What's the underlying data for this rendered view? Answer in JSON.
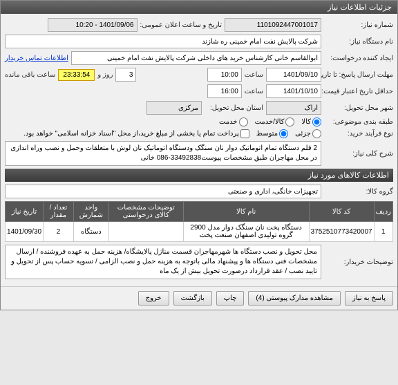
{
  "window": {
    "title": "جزئیات اطلاعات نیاز"
  },
  "fields": {
    "niaz_no_label": "شماره نیاز:",
    "niaz_no": "1101092447001017",
    "announce_label": "تاریخ و ساعت اعلان عمومی:",
    "announce": "1401/09/06 - 10:20",
    "device_label": "نام دستگاه نیاز:",
    "device": "شرکت پالایش نفت امام خمینی  ره  شازند",
    "requester_label": "ایجاد کننده درخواست:",
    "requester": "ابوالقاسم  خانی  کارشناس خرید های داخلی  شرکت پالایش نفت امام خمینی",
    "contact_link": "اطلاعات تماس خریدار",
    "deadline_label": "مهلت ارسال پاسخ: تا تاریخ:",
    "deadline_date": "1401/09/10",
    "time_label": "ساعت",
    "deadline_time": "10:00",
    "days": "3",
    "days_unit": "روز و",
    "countdown": "23:33:54",
    "remaining": "ساعت باقی مانده",
    "validity_label": "حداقل تاریخ اعتبار قیمت: تا",
    "validity_date": "1401/10/10",
    "validity_time": "16:00",
    "city_label": "شهر محل تحویل:",
    "city_value": "اراک",
    "province_label": "استان محل تحویل:",
    "province_value": "مرکزی",
    "category_label": "طبقه بندی موضوعی:",
    "cat_goods": "کالا",
    "cat_service": "کالا/خدمت",
    "cat_svc": "خدمت",
    "process_label": "نوع فرآیند خرید:",
    "proc_med": "متوسط",
    "proc_small": "جزئی",
    "proc_note": "پرداخت تمام یا بخشی از مبلغ خرید،از محل \"اسناد خزانه اسلامی\" خواهد بود.",
    "desc_label": "شرح کلی نیاز:",
    "desc_text": "2 قلم  دستگاه تمام اتوماتیک دوار نان سنگک ودستگاه اتوماتیک نان لوش با متعلقات وحمل و نصب وراه اندازی در محل مهاجران طبق مشخصات پیوست33492838-086 خانی",
    "group_label": "گروه کالا:",
    "group_value": "تجهیزات خانگی، اداری و صنعتی",
    "notes_label": "توضیحات خریدار:",
    "notes_text": "محل تحویل و نصب دستگاه ها شهرمهاجران قسمت منازل پالایشگاه/ هزینه حمل به عهده فروشنده / ارسال مشخصات فنی دستگاه ها و پیشنهاد مالی باتوجه به هزینه حمل و نصب  الزامی / تسویه حساب پس از تحویل و تایید نصب / عقد قرارداد درصورت تحویل بیش از یک ماه"
  },
  "section2": "اطلاعات کالاهای مورد نیاز",
  "table": {
    "headers": [
      "ردیف",
      "کد کالا",
      "نام کالا",
      "توضیحات مشخصات کالای درخواستی",
      "واحد شمارش",
      "تعداد / مقدار",
      "تاریخ نیاز"
    ],
    "rows": [
      [
        "1",
        "3752510773420007",
        "دستگاه پخت نان سنگک دوار مدل 2900 گروه تولیدی اصفهان صنعت پخت",
        "",
        "دستگاه",
        "2",
        "1401/09/30"
      ]
    ]
  },
  "buttons": {
    "respond": "پاسخ به نیاز",
    "attachments": "مشاهده مدارک پیوستی (4)",
    "print": "چاپ",
    "back": "بازگشت",
    "exit": "خروج"
  }
}
